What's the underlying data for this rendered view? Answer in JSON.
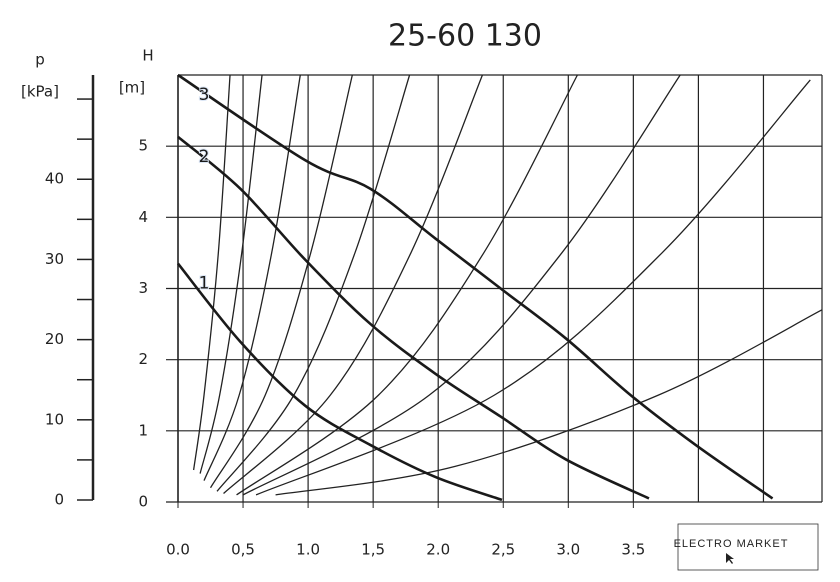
{
  "chart_data": {
    "type": "line",
    "title": "25-60 130",
    "y_label": "H",
    "y_unit": "[m]",
    "y2_label": "p",
    "y2_unit": "[kPa]",
    "xlim": [
      0,
      4.95
    ],
    "ylim": [
      0,
      6
    ],
    "xticks": [
      {
        "value": 0,
        "label": "0.0"
      },
      {
        "value": 0.5,
        "label": "0,5"
      },
      {
        "value": 1,
        "label": "1.0"
      },
      {
        "value": 1.5,
        "label": "1,5"
      },
      {
        "value": 2,
        "label": "2.0"
      },
      {
        "value": 2.5,
        "label": "2,5"
      },
      {
        "value": 3,
        "label": "3.0"
      },
      {
        "value": 3.5,
        "label": "3.5"
      }
    ],
    "xgrid": [
      0.5,
      1,
      1.5,
      2,
      2.5,
      3,
      3.5,
      4,
      4.5
    ],
    "yticks": [
      0,
      1,
      2,
      3,
      4,
      5
    ],
    "y2lim": [
      0,
      53
    ],
    "y2ticks": [
      0,
      10,
      20,
      30,
      40
    ],
    "y2minor": [
      5,
      15,
      25,
      35,
      45,
      50
    ],
    "grid": true,
    "series": [
      {
        "name": "1",
        "color": "#1a1a1a",
        "x": [
          0,
          0.48,
          0.98,
          1.48,
          1.98,
          2.49
        ],
        "values": [
          3.35,
          2.25,
          1.35,
          0.8,
          0.35,
          0.03
        ]
      },
      {
        "name": "2",
        "color": "#1a1a1a",
        "x": [
          0,
          0.48,
          0.98,
          1.48,
          1.98,
          2.48,
          2.98,
          3.62
        ],
        "values": [
          5.13,
          4.4,
          3.4,
          2.5,
          1.8,
          1.2,
          0.6,
          0.05
        ]
      },
      {
        "name": "3",
        "color": "#1a1a1a",
        "x": [
          0,
          0.98,
          1.48,
          1.98,
          2.48,
          2.98,
          3.48,
          3.98,
          4.57
        ],
        "values": [
          6,
          4.8,
          4.4,
          3.7,
          3,
          2.3,
          1.5,
          0.8,
          0.05
        ]
      }
    ],
    "system_curves": [
      {
        "x": [
          0.12,
          0.2,
          0.31,
          0.4
        ],
        "values": [
          0.45,
          1.5,
          3.5,
          6
        ]
      },
      {
        "x": [
          0.17,
          0.32,
          0.49,
          0.646
        ],
        "values": [
          0.4,
          1.5,
          3.5,
          6
        ]
      },
      {
        "x": [
          0.2,
          0.47,
          0.72,
          0.94
        ],
        "values": [
          0.3,
          1.5,
          3.5,
          6
        ]
      },
      {
        "x": [
          0.25,
          0.67,
          1.02,
          1.34
        ],
        "values": [
          0.2,
          1.5,
          3.5,
          6
        ]
      },
      {
        "x": [
          0.3,
          0.89,
          1.36,
          1.78
        ],
        "values": [
          0.15,
          1.5,
          3.5,
          6
        ]
      },
      {
        "x": [
          0.35,
          1.17,
          1.79,
          2.34
        ],
        "values": [
          0.12,
          1.5,
          3.5,
          6
        ]
      },
      {
        "x": [
          0.45,
          1.54,
          2.35,
          3.07
        ],
        "values": [
          0.1,
          1.5,
          3.5,
          6
        ]
      },
      {
        "x": [
          0.5,
          1.93,
          2.95,
          3.86
        ],
        "values": [
          0.1,
          1.5,
          3.5,
          6
        ]
      },
      {
        "x": [
          0.6,
          2.43,
          3.72,
          4.86
        ],
        "values": [
          0.1,
          1.5,
          3.5,
          5.93
        ]
      },
      {
        "x": [
          0.75,
          2.13,
          3.69,
          4.95
        ],
        "values": [
          0.1,
          0.5,
          1.5,
          2.7
        ]
      }
    ],
    "watermark": "ELECTRO MARKET"
  }
}
